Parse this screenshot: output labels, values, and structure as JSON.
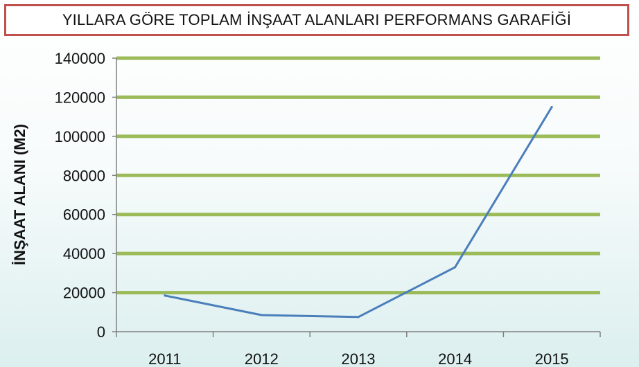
{
  "chart_data": {
    "type": "line",
    "title": "YILLARA GÖRE TOPLAM İNŞAAT ALANLARI PERFORMANS GARAFİĞİ",
    "xlabel": "",
    "ylabel": "İNŞAAT ALANI (M2)",
    "categories": [
      "2011",
      "2012",
      "2013",
      "2014",
      "2015"
    ],
    "values": [
      18500,
      8500,
      7500,
      33000,
      115000
    ],
    "ylim": [
      0,
      140000
    ],
    "yticks": [
      "0",
      "20000",
      "40000",
      "60000",
      "80000",
      "100000",
      "120000",
      "140000"
    ],
    "grid": true,
    "legend": "none",
    "colors": {
      "line": "#4a7ebb",
      "grid": "#9bbb59",
      "axis": "#7f7f7f",
      "title_border": "#c0504d"
    }
  }
}
